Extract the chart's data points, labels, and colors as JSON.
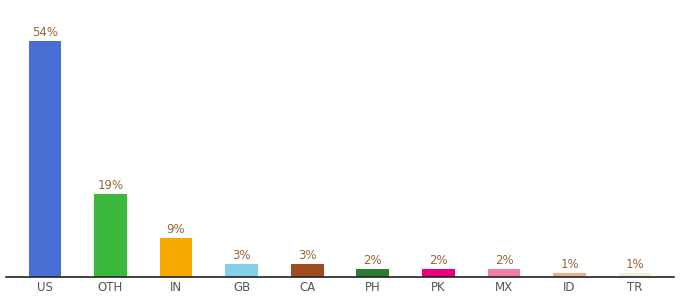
{
  "categories": [
    "US",
    "OTH",
    "IN",
    "GB",
    "CA",
    "PH",
    "PK",
    "MX",
    "ID",
    "TR"
  ],
  "values": [
    54,
    19,
    9,
    3,
    3,
    2,
    2,
    2,
    1,
    1
  ],
  "bar_colors": [
    "#4a6fd4",
    "#3cb93c",
    "#f5a800",
    "#85cfe8",
    "#9e4e1e",
    "#2e7d32",
    "#e8007a",
    "#f080a0",
    "#e8b090",
    "#f0edd8"
  ],
  "labels": [
    "54%",
    "19%",
    "9%",
    "3%",
    "3%",
    "2%",
    "2%",
    "2%",
    "1%",
    "1%"
  ],
  "label_color": "#996633",
  "label_fontsize": 8.5,
  "xlabel_fontsize": 8.5,
  "xlabel_color": "#555555",
  "background_color": "#ffffff",
  "ylim": [
    0,
    62
  ],
  "bar_width": 0.5,
  "figsize": [
    6.8,
    3.0
  ],
  "dpi": 100
}
